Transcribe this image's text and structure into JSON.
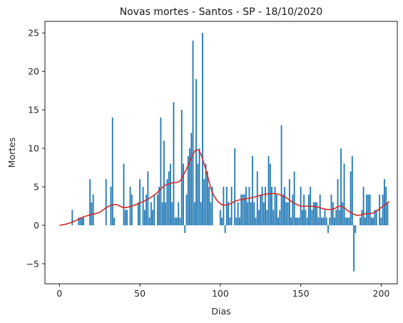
{
  "chart_data": {
    "type": "bar",
    "title": "Novas mortes - Santos - SP - 18/10/2020",
    "xlabel": "Dias",
    "ylabel": "Mortes",
    "xlim": [
      -9,
      210
    ],
    "ylim": [
      -7.6,
      26.5
    ],
    "xticks": [
      0,
      50,
      100,
      150,
      200
    ],
    "yticks": [
      -5,
      0,
      5,
      10,
      15,
      20,
      25
    ],
    "grid": false,
    "colors": {
      "bars": "#1f77b4",
      "trend": "#d62728",
      "axes": "#000000"
    },
    "series": [
      {
        "kind": "bars",
        "values": [
          0,
          0,
          0,
          0,
          0,
          0,
          0,
          0,
          2,
          0,
          0,
          0,
          1,
          1,
          1,
          1,
          0,
          0,
          0,
          6,
          3,
          4,
          0,
          0,
          0,
          0,
          0,
          0,
          0,
          6,
          0,
          0,
          5,
          14,
          1,
          0,
          0,
          0,
          0,
          0,
          8,
          2,
          2,
          0,
          5,
          4,
          0,
          0,
          0,
          3,
          6,
          0,
          5,
          2,
          4,
          7,
          1,
          3,
          2,
          4,
          0,
          4,
          5,
          14,
          3,
          11,
          3,
          6,
          7,
          8,
          3,
          16,
          1,
          1,
          3,
          1,
          15,
          8,
          -1,
          4,
          9,
          10,
          12,
          24,
          3,
          19,
          8,
          10,
          3,
          25,
          6,
          8,
          7,
          5,
          3,
          5,
          0,
          0,
          0,
          0,
          2,
          1,
          5,
          -1,
          5,
          3,
          1,
          5,
          0,
          10,
          1,
          3,
          1,
          4,
          4,
          4,
          5,
          3,
          5,
          3,
          9,
          3,
          1,
          7,
          2,
          4,
          5,
          3,
          5,
          2,
          9,
          8,
          5,
          2,
          5,
          4,
          1,
          2,
          13,
          4,
          5,
          3,
          3,
          6,
          1,
          4,
          7,
          1,
          1,
          1,
          5,
          2,
          4,
          2,
          1,
          4,
          5,
          2,
          3,
          3,
          3,
          1,
          4,
          1,
          1,
          2,
          1,
          -1,
          1,
          4,
          3,
          1,
          2,
          6,
          2,
          10,
          3,
          8,
          1,
          1,
          1,
          7,
          9,
          -6,
          -1,
          0,
          0,
          1,
          2,
          5,
          1,
          4,
          4,
          4,
          1,
          1,
          2,
          2,
          0,
          4,
          1,
          4,
          6,
          5,
          3
        ]
      },
      {
        "kind": "line",
        "x": [
          0,
          5,
          10,
          15,
          20,
          25,
          30,
          35,
          40,
          45,
          50,
          55,
          60,
          65,
          70,
          75,
          80,
          82,
          85,
          88,
          92,
          95,
          100,
          105,
          110,
          115,
          120,
          125,
          130,
          135,
          140,
          145,
          150,
          155,
          160,
          165,
          170,
          175,
          180,
          185,
          190,
          195,
          200,
          205
        ],
        "y": [
          0,
          0.2,
          0.6,
          1.1,
          1.4,
          1.7,
          2.4,
          2.7,
          2.3,
          2.5,
          2.9,
          3.4,
          4.1,
          5.1,
          5.5,
          5.8,
          7.8,
          8.8,
          9.8,
          9.2,
          6.5,
          4.3,
          2.8,
          2.7,
          3.2,
          3.4,
          3.6,
          3.9,
          4.1,
          4.1,
          3.7,
          3.0,
          2.5,
          2.5,
          2.4,
          2.1,
          2.1,
          2.5,
          1.8,
          1.3,
          1.5,
          1.6,
          2.3,
          3.1
        ]
      }
    ]
  }
}
